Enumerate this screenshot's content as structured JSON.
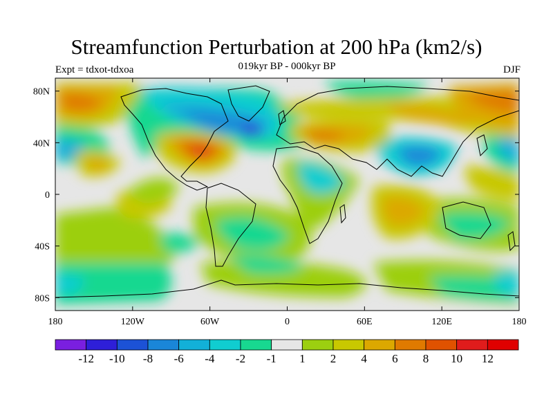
{
  "title": "Streamfunction Perturbation at 200 hPa (km2/s)",
  "subtitle": "019kyr BP - 000kyr BP",
  "left_label": "Expt = tdxot-tdxoa",
  "right_label": "DJF",
  "map": {
    "projection": "cylindrical-equidistant",
    "lon_range": [
      -180,
      180
    ],
    "lat_range": [
      -90,
      90
    ],
    "lon_ticks": [
      "180",
      "120W",
      "60W",
      "0",
      "60E",
      "120E",
      "180"
    ],
    "lat_ticks": [
      "80N",
      "40N",
      "0",
      "40S",
      "80S"
    ],
    "background_value_color": "#e6e6e6"
  },
  "colorbar": {
    "labels": [
      "-12",
      "-10",
      "-8",
      "-6",
      "-4",
      "-2",
      "-1",
      "1",
      "2",
      "4",
      "6",
      "8",
      "10",
      "12"
    ],
    "colors": [
      "#7a1fe0",
      "#2e1fd8",
      "#1c52d6",
      "#1a86d8",
      "#12b0d8",
      "#10cdd0",
      "#18d890",
      "#e6e6e6",
      "#9ccf10",
      "#c8c800",
      "#dca800",
      "#e07a00",
      "#e05200",
      "#e01c1c",
      "#e00000"
    ]
  },
  "chart_data": {
    "type": "contour-map",
    "variable": "Streamfunction Perturbation at 200 hPa",
    "units": "km2/s",
    "experiment": "tdxot-tdxoa",
    "difference": "019kyr BP - 000kyr BP",
    "season": "DJF",
    "contour_levels": [
      -12,
      -10,
      -8,
      -6,
      -4,
      -2,
      -1,
      1,
      2,
      4,
      6,
      8,
      10,
      12
    ],
    "features": [
      {
        "lon": -60,
        "lat": 35,
        "value": 11
      },
      {
        "lon": -28,
        "lat": 48,
        "value": -11
      },
      {
        "lon": -80,
        "lat": 58,
        "value": -8
      },
      {
        "lon": -165,
        "lat": 65,
        "value": 6
      },
      {
        "lon": 100,
        "lat": 30,
        "value": -7
      },
      {
        "lon": 60,
        "lat": 45,
        "value": 5
      },
      {
        "lon": 150,
        "lat": 65,
        "value": 4
      },
      {
        "lon": -170,
        "lat": 34,
        "value": -6
      },
      {
        "lon": -145,
        "lat": 22,
        "value": 5
      },
      {
        "lon": 175,
        "lat": 34,
        "value": -6
      },
      {
        "lon": 80,
        "lat": -25,
        "value": 5
      },
      {
        "lon": 30,
        "lat": 20,
        "value": -3
      },
      {
        "lon": -20,
        "lat": -60,
        "value": -3
      },
      {
        "lon": -105,
        "lat": -55,
        "value": -2
      },
      {
        "lon": 170,
        "lat": -70,
        "value": -3
      }
    ]
  }
}
